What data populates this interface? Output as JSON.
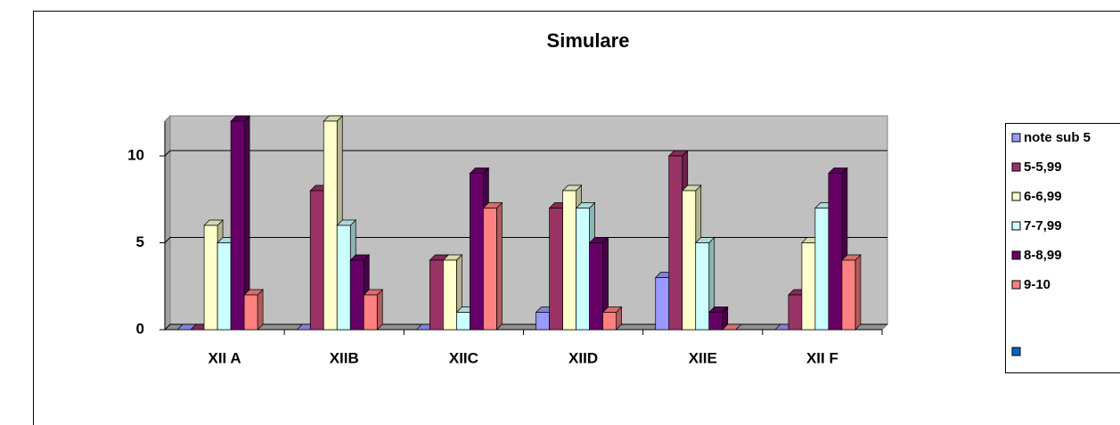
{
  "chart_data": {
    "type": "bar3d",
    "title": "Simulare",
    "categories": [
      "XII A",
      "XIIB",
      "XIIC",
      "XIID",
      "XIIE",
      "XII F"
    ],
    "series": [
      {
        "name": "note sub 5",
        "color": "#9999ff",
        "values": [
          0,
          0,
          0,
          1,
          3,
          0
        ]
      },
      {
        "name": "5-5,99",
        "color": "#993366",
        "values": [
          0,
          8,
          4,
          7,
          10,
          2
        ]
      },
      {
        "name": "6-6,99",
        "color": "#ffffcc",
        "values": [
          6,
          12,
          4,
          8,
          8,
          5
        ]
      },
      {
        "name": "7-7,99",
        "color": "#ccffff",
        "values": [
          5,
          6,
          1,
          7,
          5,
          7
        ]
      },
      {
        "name": "8-8,99",
        "color": "#660066",
        "values": [
          12,
          4,
          9,
          5,
          1,
          9
        ]
      },
      {
        "name": "9-10",
        "color": "#ff8080",
        "values": [
          2,
          2,
          7,
          1,
          0,
          4
        ]
      }
    ],
    "ylim": [
      0,
      12
    ],
    "yticks": [
      0,
      5,
      10
    ],
    "grid": true,
    "legend": "right"
  }
}
